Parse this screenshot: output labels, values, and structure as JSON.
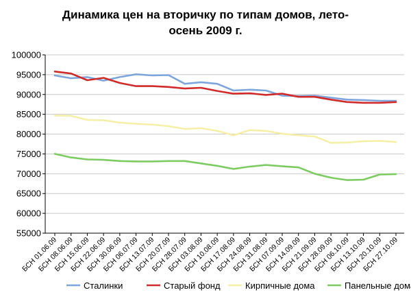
{
  "chart_data": {
    "type": "line",
    "title_lines": [
      "Динамика цен на вторичку по типам домов, лето-",
      "осень 2009 г."
    ],
    "xlabel": "",
    "ylabel": "",
    "ylim": [
      55000,
      100000
    ],
    "yticks": [
      55000,
      60000,
      65000,
      70000,
      75000,
      80000,
      85000,
      90000,
      95000,
      100000
    ],
    "grid": true,
    "legend_position": "bottom",
    "categories": [
      "БСН 01.06.09",
      "БСН 08.06.09",
      "БСН 15.06.09",
      "БСН 22.06.09",
      "БСН 30.06.09",
      "БСН 06.07.09",
      "БСН 13.07.09",
      "БСН 20.07.09",
      "БСН 28.07.09",
      "БСН 03.08.09",
      "БСН 10.08.09",
      "БСН 17.08.09",
      "БСН 24.08.09",
      "БСН 31.08.09",
      "БСН 07.09.09",
      "БСН 14.09.09",
      "БСН 21.09.09",
      "БСН 28.09.09",
      "БСН 06.10.09",
      "БСН 13.10.09",
      "БСН 20.10.09",
      "БСН 27.10.09"
    ],
    "series": [
      {
        "name": "Сталинки",
        "color": "#7ea6dc",
        "values": [
          94800,
          94100,
          94400,
          93500,
          94400,
          95100,
          94800,
          94900,
          92700,
          93100,
          92700,
          91000,
          91200,
          91000,
          89700,
          89600,
          89700,
          89200,
          88700,
          88600,
          88400,
          88400
        ]
      },
      {
        "name": "Старый фонд",
        "color": "#d02a2a",
        "values": [
          95800,
          95300,
          93600,
          94200,
          92900,
          92100,
          92100,
          91900,
          91500,
          91700,
          90900,
          90200,
          90300,
          89900,
          90200,
          89400,
          89400,
          88700,
          88100,
          87900,
          87900,
          88100
        ]
      },
      {
        "name": "Кирпичные дома",
        "color": "#f5f0a8",
        "values": [
          84700,
          84600,
          83600,
          83500,
          82900,
          82600,
          82400,
          82000,
          81300,
          81500,
          80800,
          79700,
          81000,
          80800,
          80100,
          79700,
          79400,
          77800,
          77900,
          78200,
          78300,
          78000
        ]
      },
      {
        "name": "Панельные дома",
        "color": "#7dcc62",
        "values": [
          75000,
          74100,
          73600,
          73500,
          73200,
          73100,
          73100,
          73200,
          73200,
          72600,
          72000,
          71200,
          71800,
          72200,
          71900,
          71600,
          70000,
          69000,
          68400,
          68500,
          69800,
          69900
        ]
      }
    ]
  }
}
